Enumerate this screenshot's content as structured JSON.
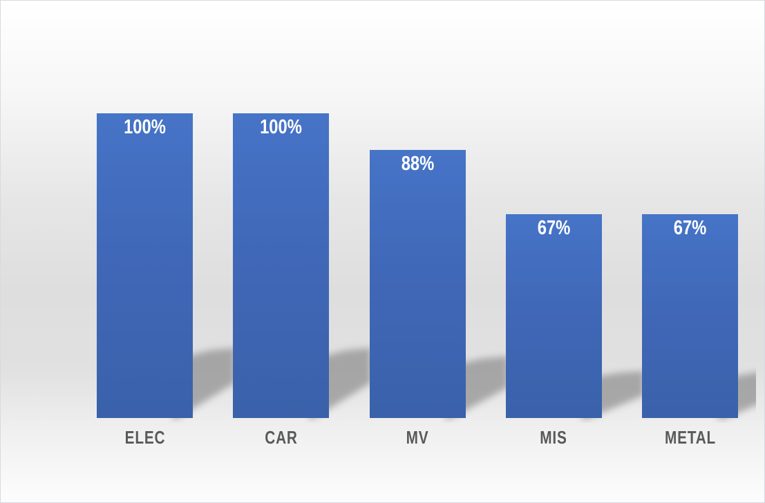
{
  "chart_data": {
    "type": "bar",
    "categories": [
      "ELEC",
      "CAR",
      "MV",
      "MIS",
      "METAL"
    ],
    "values": [
      100,
      100,
      88,
      67,
      67
    ],
    "value_labels": [
      "100%",
      "100%",
      "88%",
      "67%",
      "67%"
    ],
    "title": "",
    "xlabel": "",
    "ylabel": "",
    "ylim": [
      0,
      100
    ],
    "grid": false,
    "legend": false,
    "bar_color": "#4472c4",
    "value_label_color": "#ffffff",
    "category_label_color": "#595959"
  }
}
